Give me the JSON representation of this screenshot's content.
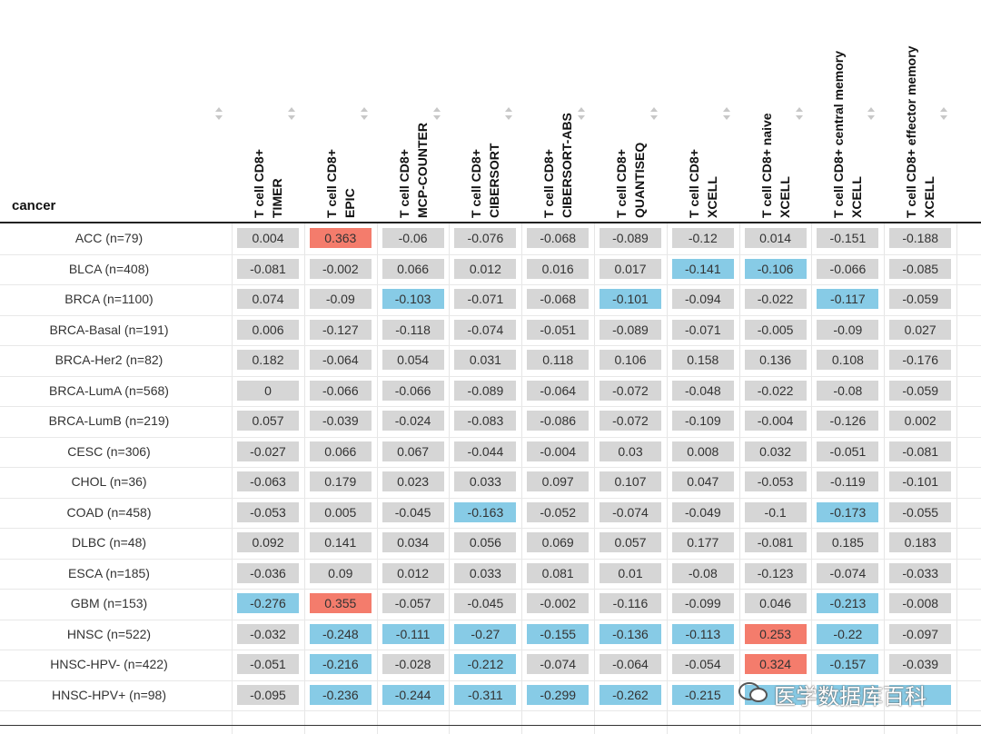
{
  "table": {
    "header": [
      "cancer",
      [
        "T cell CD8+",
        "TIMER"
      ],
      [
        "T cell CD8+",
        "EPIC"
      ],
      [
        "T cell CD8+",
        "MCP-COUNTER"
      ],
      [
        "T cell CD8+",
        "CIBERSORT"
      ],
      [
        "T cell CD8+",
        "CIBERSORT-ABS"
      ],
      [
        "T cell CD8+",
        "QUANTISEQ"
      ],
      [
        "T cell CD8+",
        "XCELL"
      ],
      [
        "T cell CD8+ naive",
        "XCELL"
      ],
      [
        "T cell CD8+ central memory",
        "XCELL"
      ],
      [
        "T cell CD8+ effector memory",
        "XCELL"
      ]
    ],
    "cell_color": "#d6d6d6",
    "rows": [
      {
        "label": "ACC (n=79)",
        "values": [
          0.004,
          0.363,
          -0.06,
          -0.076,
          -0.068,
          -0.089,
          -0.12,
          0.014,
          -0.151,
          -0.188
        ],
        "highlights": [
          null,
          "#f47c6c",
          null,
          null,
          null,
          null,
          null,
          null,
          null,
          null
        ]
      },
      {
        "label": "BLCA (n=408)",
        "values": [
          -0.081,
          -0.002,
          0.066,
          0.012,
          0.016,
          0.017,
          -0.141,
          -0.106,
          -0.066,
          -0.085
        ],
        "highlights": [
          null,
          null,
          null,
          null,
          null,
          null,
          "#87cbe6",
          "#87cbe6",
          null,
          null
        ]
      },
      {
        "label": "BRCA (n=1100)",
        "values": [
          0.074,
          -0.09,
          -0.103,
          -0.071,
          -0.068,
          -0.101,
          -0.094,
          -0.022,
          -0.117,
          -0.059
        ],
        "highlights": [
          null,
          null,
          "#87cbe6",
          null,
          null,
          "#87cbe6",
          null,
          null,
          "#87cbe6",
          null
        ]
      },
      {
        "label": "BRCA-Basal (n=191)",
        "values": [
          0.006,
          -0.127,
          -0.118,
          -0.074,
          -0.051,
          -0.089,
          -0.071,
          -0.005,
          -0.09,
          0.027
        ],
        "highlights": [
          null,
          null,
          null,
          null,
          null,
          null,
          null,
          null,
          null,
          null
        ]
      },
      {
        "label": "BRCA-Her2 (n=82)",
        "values": [
          0.182,
          -0.064,
          0.054,
          0.031,
          0.118,
          0.106,
          0.158,
          0.136,
          0.108,
          -0.176
        ],
        "highlights": [
          null,
          null,
          null,
          null,
          null,
          null,
          null,
          null,
          null,
          null
        ]
      },
      {
        "label": "BRCA-LumA (n=568)",
        "values": [
          0,
          -0.066,
          -0.066,
          -0.089,
          -0.064,
          -0.072,
          -0.048,
          -0.022,
          -0.08,
          -0.059
        ],
        "highlights": [
          null,
          null,
          null,
          null,
          null,
          null,
          null,
          null,
          null,
          null
        ]
      },
      {
        "label": "BRCA-LumB (n=219)",
        "values": [
          0.057,
          -0.039,
          -0.024,
          -0.083,
          -0.086,
          -0.072,
          -0.109,
          -0.004,
          -0.126,
          0.002
        ],
        "highlights": [
          null,
          null,
          null,
          null,
          null,
          null,
          null,
          null,
          null,
          null
        ]
      },
      {
        "label": "CESC (n=306)",
        "values": [
          -0.027,
          0.066,
          0.067,
          -0.044,
          -0.004,
          0.03,
          0.008,
          0.032,
          -0.051,
          -0.081
        ],
        "highlights": [
          null,
          null,
          null,
          null,
          null,
          null,
          null,
          null,
          null,
          null
        ]
      },
      {
        "label": "CHOL (n=36)",
        "values": [
          -0.063,
          0.179,
          0.023,
          0.033,
          0.097,
          0.107,
          0.047,
          -0.053,
          -0.119,
          -0.101
        ],
        "highlights": [
          null,
          null,
          null,
          null,
          null,
          null,
          null,
          null,
          null,
          null
        ]
      },
      {
        "label": "COAD (n=458)",
        "values": [
          -0.053,
          0.005,
          -0.045,
          -0.163,
          -0.052,
          -0.074,
          -0.049,
          -0.1,
          -0.173,
          -0.055
        ],
        "highlights": [
          null,
          null,
          null,
          "#87cbe6",
          null,
          null,
          null,
          null,
          "#87cbe6",
          null
        ]
      },
      {
        "label": "DLBC (n=48)",
        "values": [
          0.092,
          0.141,
          0.034,
          0.056,
          0.069,
          0.057,
          0.177,
          -0.081,
          0.185,
          0.183
        ],
        "highlights": [
          null,
          null,
          null,
          null,
          null,
          null,
          null,
          null,
          null,
          null
        ]
      },
      {
        "label": "ESCA (n=185)",
        "values": [
          -0.036,
          0.09,
          0.012,
          0.033,
          0.081,
          0.01,
          -0.08,
          -0.123,
          -0.074,
          -0.033
        ],
        "highlights": [
          null,
          null,
          null,
          null,
          null,
          null,
          null,
          null,
          null,
          null
        ]
      },
      {
        "label": "GBM (n=153)",
        "values": [
          -0.276,
          0.355,
          -0.057,
          -0.045,
          -0.002,
          -0.116,
          -0.099,
          0.046,
          -0.213,
          -0.008
        ],
        "highlights": [
          "#87cbe6",
          "#f47c6c",
          null,
          null,
          null,
          null,
          null,
          null,
          "#87cbe6",
          null
        ]
      },
      {
        "label": "HNSC (n=522)",
        "values": [
          -0.032,
          -0.248,
          -0.111,
          -0.27,
          -0.155,
          -0.136,
          -0.113,
          0.253,
          -0.22,
          -0.097
        ],
        "highlights": [
          null,
          "#87cbe6",
          "#87cbe6",
          "#87cbe6",
          "#87cbe6",
          "#87cbe6",
          "#87cbe6",
          "#f47c6c",
          "#87cbe6",
          null
        ]
      },
      {
        "label": "HNSC-HPV- (n=422)",
        "values": [
          -0.051,
          -0.216,
          -0.028,
          -0.212,
          -0.074,
          -0.064,
          -0.054,
          0.324,
          -0.157,
          -0.039
        ],
        "highlights": [
          null,
          "#87cbe6",
          null,
          "#87cbe6",
          null,
          null,
          null,
          "#f47c6c",
          "#87cbe6",
          null
        ]
      },
      {
        "label": "HNSC-HPV+ (n=98)",
        "values": [
          -0.095,
          -0.236,
          -0.244,
          -0.311,
          -0.299,
          -0.262,
          -0.215,
          null,
          null,
          null
        ],
        "highlights": [
          null,
          "#87cbe6",
          "#87cbe6",
          "#87cbe6",
          "#87cbe6",
          "#87cbe6",
          "#87cbe6",
          "#87cbe6",
          "#87cbe6",
          "#87cbe6"
        ]
      }
    ]
  },
  "watermark": "医学数据库百科"
}
